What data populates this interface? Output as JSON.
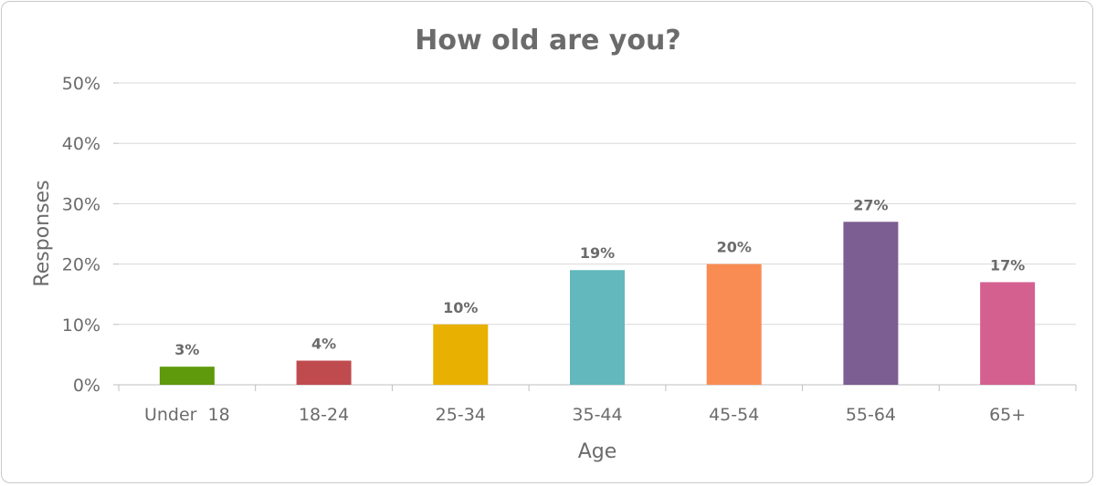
{
  "chart_data": {
    "type": "bar",
    "title": "How old are you?",
    "xlabel": "Age",
    "ylabel": "Responses",
    "categories": [
      "Under  18",
      "18-24",
      "25-34",
      "35-44",
      "45-54",
      "55-64",
      "65+"
    ],
    "values": [
      3,
      4,
      10,
      19,
      20,
      27,
      17
    ],
    "data_labels": [
      "3%",
      "4%",
      "10%",
      "19%",
      "20%",
      "27%",
      "17%"
    ],
    "colors": [
      "#5e9a0b",
      "#bf4b4e",
      "#e8b000",
      "#62b8bc",
      "#f98c52",
      "#7c5e92",
      "#d46090"
    ],
    "ylim": [
      0,
      50
    ],
    "yticks": [
      0,
      10,
      20,
      30,
      40,
      50
    ],
    "ytick_labels": [
      "0%",
      "10%",
      "20%",
      "30%",
      "40%",
      "50%"
    ],
    "grid": true,
    "legend": "none"
  }
}
